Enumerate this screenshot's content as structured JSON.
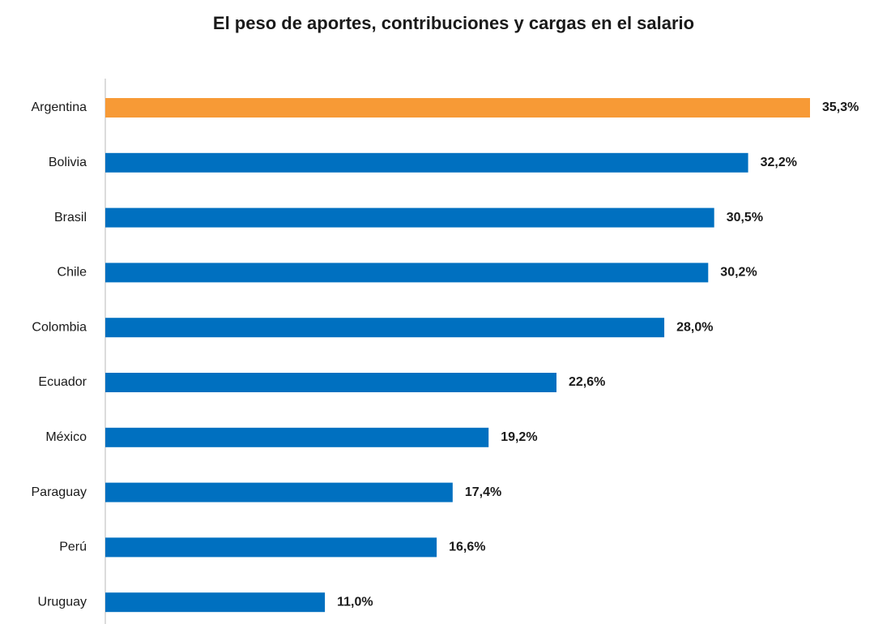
{
  "chart_data": {
    "type": "bar",
    "orientation": "horizontal",
    "title": "El peso de aportes, contribuciones y cargas en el salario",
    "categories": [
      "Argentina",
      "Bolivia",
      "Brasil",
      "Chile",
      "Colombia",
      "Ecuador",
      "México",
      "Paraguay",
      "Perú",
      "Uruguay"
    ],
    "values": [
      35.3,
      32.2,
      30.5,
      30.2,
      28.0,
      22.6,
      19.2,
      17.4,
      16.6,
      11.0
    ],
    "value_labels": [
      "35,3%",
      "32,2%",
      "30,5%",
      "30,2%",
      "28,0%",
      "22,6%",
      "19,2%",
      "17,4%",
      "16,6%",
      "11,0%"
    ],
    "colors": [
      "#f79a36",
      "#0070c0",
      "#0070c0",
      "#0070c0",
      "#0070c0",
      "#0070c0",
      "#0070c0",
      "#0070c0",
      "#0070c0",
      "#0070c0"
    ]
  }
}
